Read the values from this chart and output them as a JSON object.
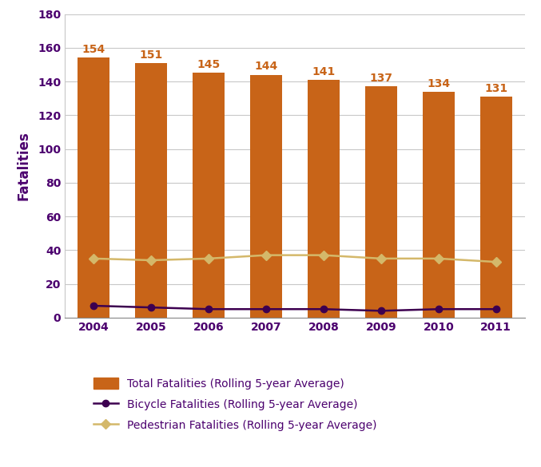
{
  "years": [
    2004,
    2005,
    2006,
    2007,
    2008,
    2009,
    2010,
    2011
  ],
  "total_fatalities": [
    154,
    151,
    145,
    144,
    141,
    137,
    134,
    131
  ],
  "bicycle_fatalities": [
    7,
    6,
    5,
    5,
    5,
    4,
    5,
    5
  ],
  "pedestrian_fatalities": [
    35,
    34,
    35,
    37,
    37,
    35,
    35,
    33
  ],
  "bar_color": "#C86418",
  "bicycle_color": "#3D0050",
  "pedestrian_color": "#D4B86A",
  "ylabel": "Fatalities",
  "ylim": [
    0,
    180
  ],
  "yticks": [
    0,
    20,
    40,
    60,
    80,
    100,
    120,
    140,
    160,
    180
  ],
  "legend_total": "Total Fatalities (Rolling 5-year Average)",
  "legend_bicycle": "Bicycle Fatalities (Rolling 5-year Average)",
  "legend_pedestrian": "Pedestrian Fatalities (Rolling 5-year Average)",
  "bar_label_color": "#C86418",
  "bar_label_fontsize": 10,
  "axis_label_color": "#4B006E",
  "tick_label_color": "#4B006E",
  "background_color": "#FFFFFF",
  "grid_color": "#C8C8C8",
  "legend_fontsize": 10,
  "tick_fontsize": 10,
  "ylabel_fontsize": 12
}
